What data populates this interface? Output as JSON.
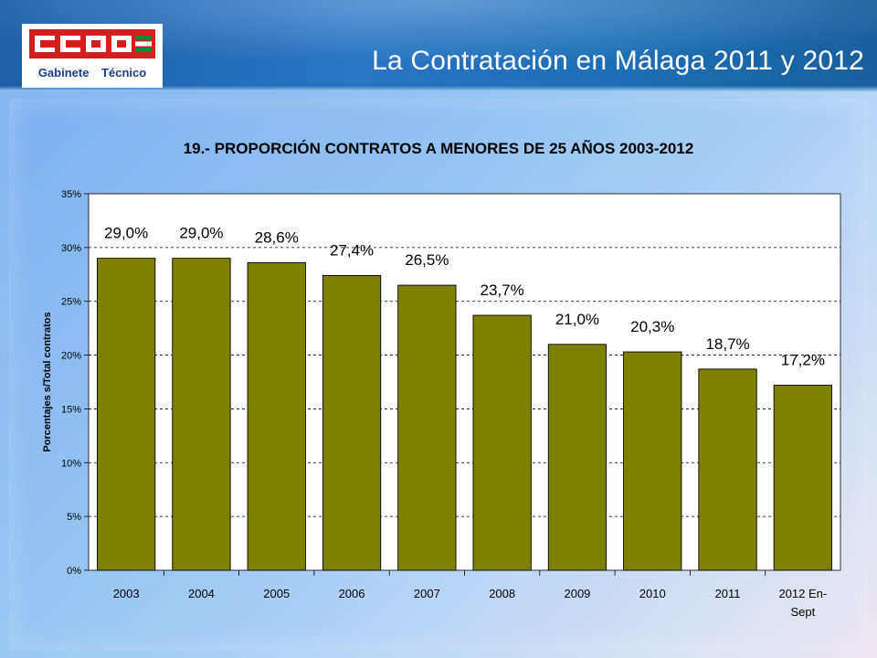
{
  "header": {
    "logo_text": "CCOO",
    "logo_subtitle": "Gabinete Técnico",
    "title": "La Contratación en Málaga 2011 y 2012"
  },
  "colors": {
    "bar": "#808000",
    "plot_background": "#ffffff",
    "logo_red": "#d4201b",
    "logo_green": "#0e8a3a"
  },
  "chart_data": {
    "type": "bar",
    "title": "19.- PROPORCIÓN CONTRATOS A MENORES DE 25 AÑOS 2003-2012",
    "ylabel": "Porcentajes s/Total contratos",
    "xlabel": "",
    "categories": [
      "2003",
      "2004",
      "2005",
      "2006",
      "2007",
      "2008",
      "2009",
      "2010",
      "2011",
      "2012 En-Sept"
    ],
    "category_lines": [
      [
        "2003"
      ],
      [
        "2004"
      ],
      [
        "2005"
      ],
      [
        "2006"
      ],
      [
        "2007"
      ],
      [
        "2008"
      ],
      [
        "2009"
      ],
      [
        "2010"
      ],
      [
        "2011"
      ],
      [
        "2012 En-",
        "Sept"
      ]
    ],
    "values": [
      29.0,
      29.0,
      28.6,
      27.4,
      26.5,
      23.7,
      21.0,
      20.3,
      18.7,
      17.2
    ],
    "data_labels": [
      "29,0%",
      "29,0%",
      "28,6%",
      "27,4%",
      "26,5%",
      "23,7%",
      "21,0%",
      "20,3%",
      "18,7%",
      "17,2%"
    ],
    "ylim": [
      0,
      35
    ],
    "yticks": [
      0,
      5,
      10,
      15,
      20,
      25,
      30,
      35
    ],
    "ytick_labels": [
      "0%",
      "5%",
      "10%",
      "15%",
      "20%",
      "25%",
      "30%",
      "35%"
    ],
    "grid": true,
    "grid_style": "dashed"
  }
}
